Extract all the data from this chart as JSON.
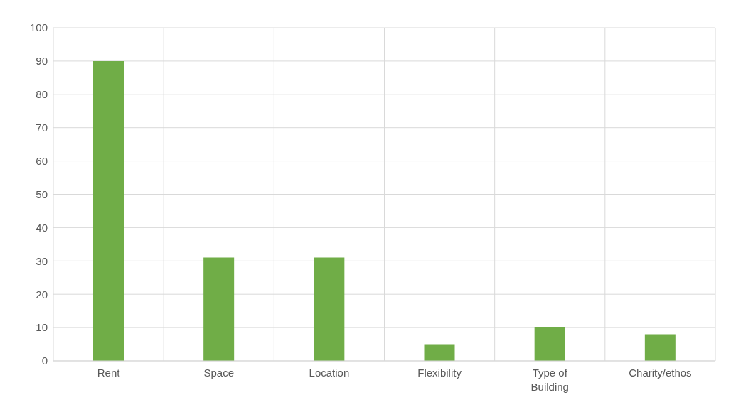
{
  "chart_data": {
    "type": "bar",
    "categories": [
      "Rent",
      "Space",
      "Location",
      "Flexibility",
      "Type of Building",
      "Charity/ethos"
    ],
    "values": [
      90,
      31,
      31,
      5,
      10,
      8
    ],
    "color": "#70ad47",
    "ylim": [
      0,
      100
    ],
    "yticks": [
      0,
      10,
      20,
      30,
      40,
      50,
      60,
      70,
      80,
      90,
      100
    ],
    "grid": true
  }
}
